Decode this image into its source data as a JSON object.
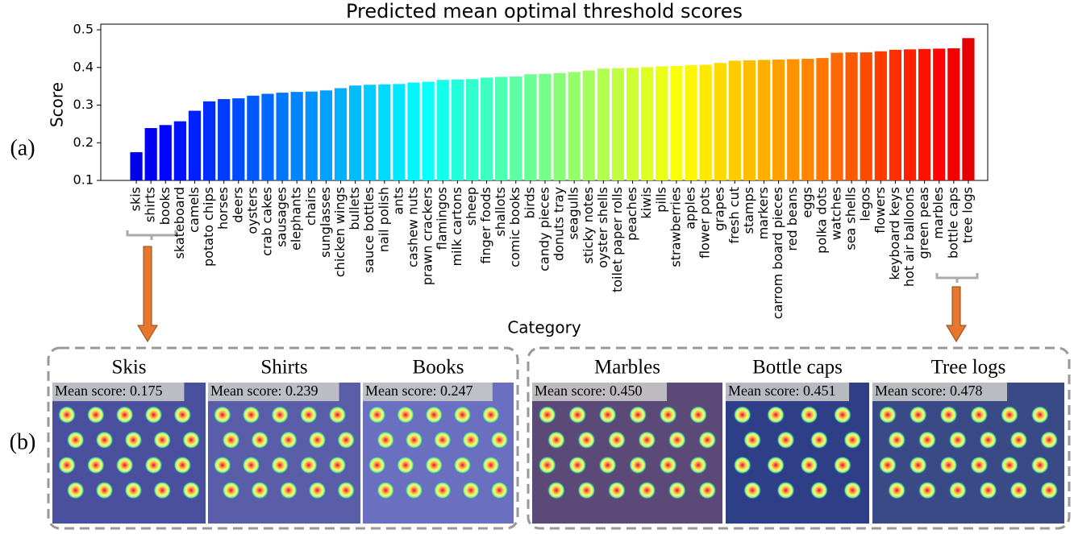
{
  "chart_data": {
    "type": "bar",
    "title": "Predicted mean optimal threshold scores",
    "x_label": "Category",
    "y_label": "Score",
    "categories": [
      "skis",
      "shirts",
      "books",
      "skateboard",
      "camels",
      "potato chips",
      "horses",
      "deers",
      "oysters",
      "crab cakes",
      "sausages",
      "elephants",
      "chairs",
      "sunglasses",
      "chicken wings",
      "bullets",
      "sauce bottles",
      "nail polish",
      "ants",
      "cashew nuts",
      "prawn crackers",
      "flamingos",
      "milk cartons",
      "sheep",
      "finger foods",
      "shallots",
      "comic books",
      "birds",
      "candy pieces",
      "donuts tray",
      "seagulls",
      "sticky notes",
      "oyster shells",
      "toilet paper rolls",
      "peaches",
      "kiwis",
      "pills",
      "strawberries",
      "apples",
      "flower pots",
      "grapes",
      "fresh cut",
      "stamps",
      "markers",
      "carrom board pieces",
      "red beans",
      "eggs",
      "polka dots",
      "watches",
      "sea shells",
      "legos",
      "flowers",
      "keyboard keys",
      "hot air balloons",
      "green peas",
      "marbles",
      "bottle caps",
      "tree logs"
    ],
    "values": [
      0.175,
      0.239,
      0.247,
      0.257,
      0.285,
      0.31,
      0.316,
      0.318,
      0.325,
      0.33,
      0.333,
      0.335,
      0.336,
      0.339,
      0.345,
      0.352,
      0.354,
      0.355,
      0.356,
      0.36,
      0.362,
      0.367,
      0.368,
      0.369,
      0.373,
      0.375,
      0.376,
      0.382,
      0.383,
      0.385,
      0.388,
      0.392,
      0.397,
      0.398,
      0.399,
      0.401,
      0.403,
      0.404,
      0.406,
      0.407,
      0.412,
      0.418,
      0.419,
      0.42,
      0.421,
      0.422,
      0.423,
      0.425,
      0.439,
      0.44,
      0.44,
      0.443,
      0.447,
      0.448,
      0.449,
      0.45,
      0.451,
      0.478
    ],
    "colormap": "jet",
    "ylim": [
      0.1,
      0.515
    ],
    "yticks": [
      0.1,
      0.2,
      0.3,
      0.4,
      0.5
    ],
    "grid": false
  },
  "panel_labels": [
    "(a)",
    "(b)"
  ],
  "examples": [
    {
      "items": [
        {
          "title": "Skis",
          "score_label": "Mean score: 0.175"
        },
        {
          "title": "Shirts",
          "score_label": "Mean score: 0.239"
        },
        {
          "title": "Books",
          "score_label": "Mean score: 0.247"
        }
      ]
    },
    {
      "items": [
        {
          "title": "Marbles",
          "score_label": "Mean score: 0.450"
        },
        {
          "title": "Bottle caps",
          "score_label": "Mean score: 0.451"
        },
        {
          "title": "Tree logs",
          "score_label": "Mean score: 0.478"
        }
      ]
    }
  ]
}
